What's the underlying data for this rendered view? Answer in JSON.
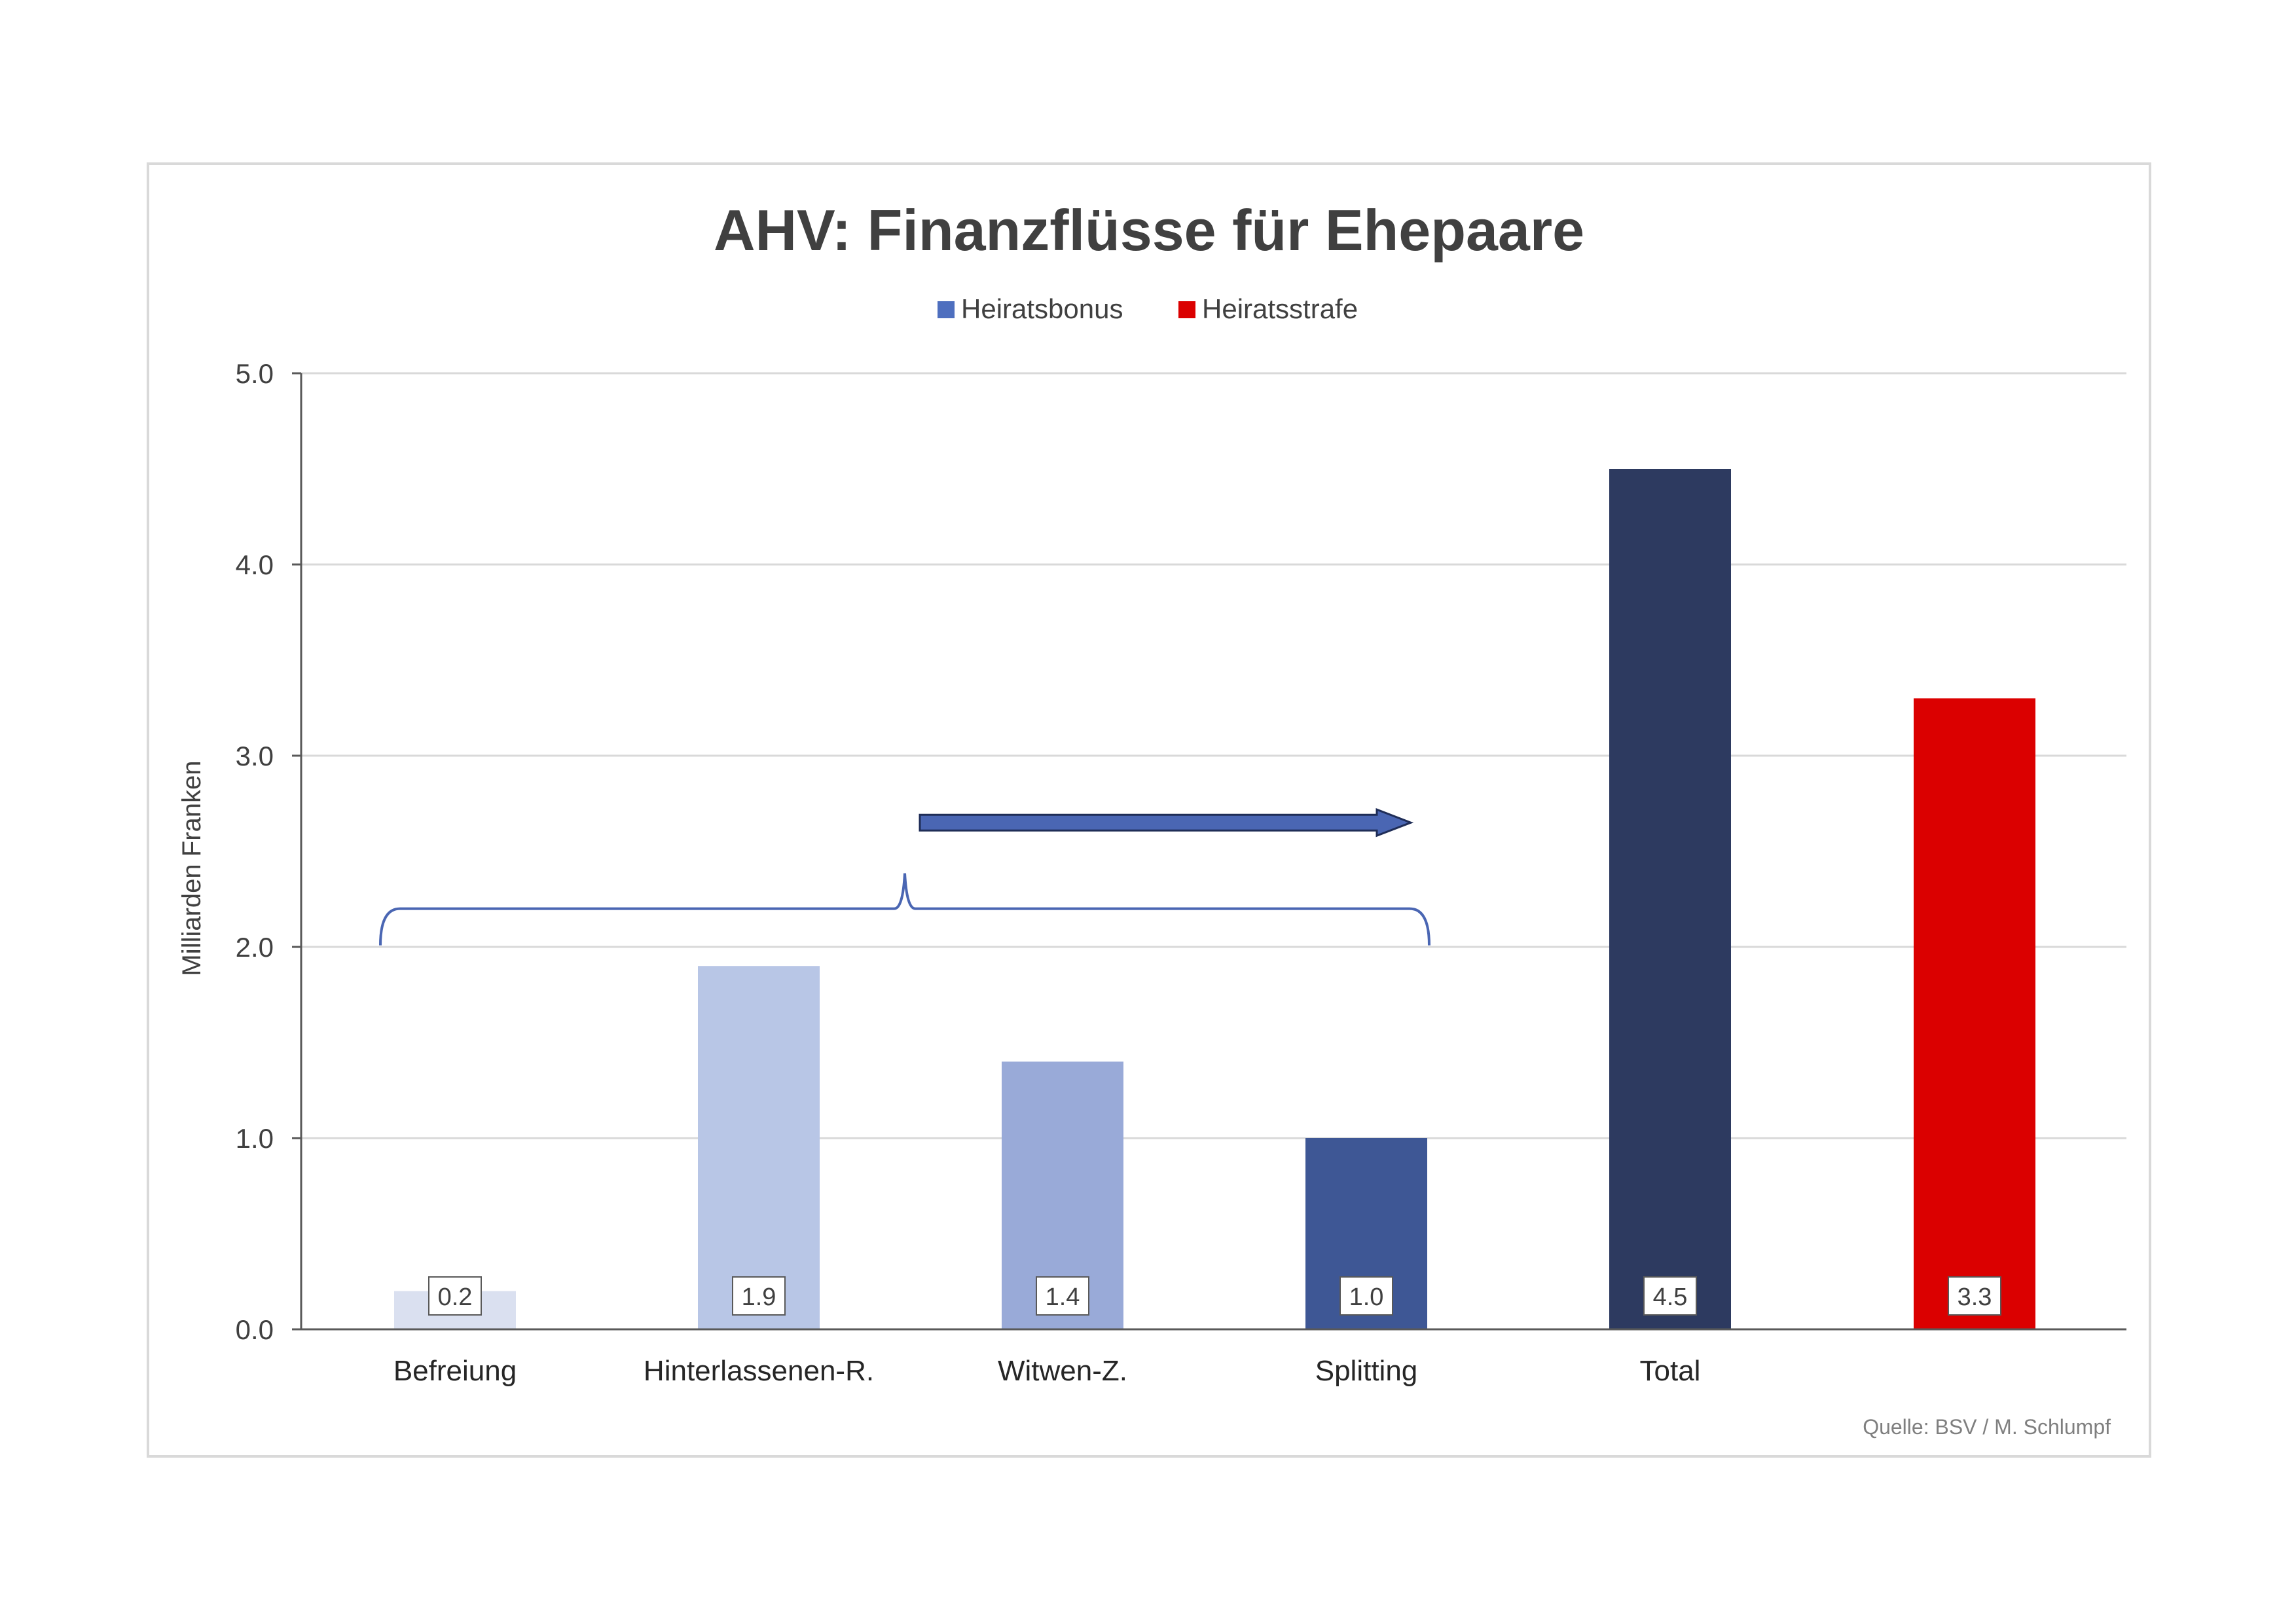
{
  "chart_data": {
    "type": "bar",
    "title": "AHV: Finanzflüsse für Ehepaare",
    "ylabel": "Milliarden Franken",
    "xlabel": "",
    "ylim": [
      0,
      5
    ],
    "yticks": [
      0,
      1,
      2,
      3,
      4,
      5
    ],
    "ytick_labels": [
      "0.0",
      "1.0",
      "2.0",
      "3.0",
      "4.0",
      "5.0"
    ],
    "grid": true,
    "legend_position": "top-center",
    "categories": [
      "Befreiung",
      "Hinterlassenen-R.",
      "Witwen-Z.",
      "Splitting",
      "Total",
      ""
    ],
    "values": [
      0.2,
      1.9,
      1.4,
      1.0,
      4.5,
      3.3
    ],
    "value_labels": [
      "0.2",
      "1.9",
      "1.4",
      "1.0",
      "4.5",
      "3.3"
    ],
    "bar_colors": [
      "#dae0f0",
      "#b8c6e6",
      "#99aad8",
      "#3e5795",
      "#2d3a60",
      "#db0000"
    ],
    "legend": [
      {
        "name": "Heiratsbonus",
        "color": "#4e6fbf"
      },
      {
        "name": "Heiratsstrafe",
        "color": "#db0000"
      }
    ],
    "annotations": {
      "brace": {
        "from_category": 0,
        "to_category": 3,
        "y": 2.2,
        "color": "#4a66b3"
      },
      "arrow": {
        "from_category": 2,
        "to_category": 3,
        "y": 2.65,
        "direction": "right",
        "color": "#4a66b3"
      }
    },
    "source": "Quelle: BSV / M. Schlumpf"
  }
}
